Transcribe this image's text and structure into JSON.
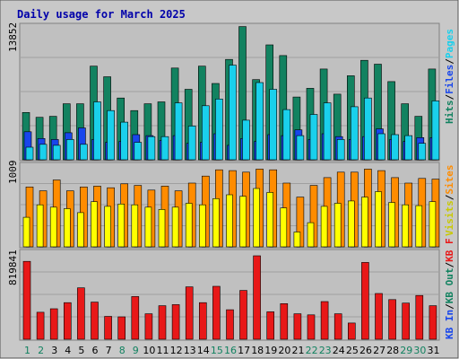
{
  "title": "Daily usage for March 2025",
  "colors": {
    "background": "#c0c0c0",
    "hits": "#128260",
    "files": "#1846ec",
    "pages": "#1ad0ec",
    "visits": "#ffff00",
    "sites": "#ff8c00",
    "kbytes": "#e81818"
  },
  "panels": [
    {
      "scale_label": "13852",
      "legend": [
        {
          "text": "Hits",
          "color": "#128260"
        },
        {
          "text": "Files",
          "color": "#1846ec"
        },
        {
          "text": "Pages",
          "color": "#1ad0ec"
        }
      ]
    },
    {
      "scale_label": "1009",
      "legend": [
        {
          "text": "Visits",
          "color": "#c9c900"
        },
        {
          "text": "Sites",
          "color": "#ff8c00"
        }
      ]
    },
    {
      "scale_label": "819841",
      "legend": [
        {
          "text": "KB In",
          "color": "#1846ec"
        },
        {
          "text": "KB Out",
          "color": "#128260"
        },
        {
          "text": "KB F",
          "color": "#e81818"
        }
      ]
    }
  ],
  "chart_data": {
    "type": "bar",
    "categories": [
      "1",
      "2",
      "3",
      "4",
      "5",
      "6",
      "7",
      "8",
      "9",
      "10",
      "11",
      "12",
      "13",
      "14",
      "15",
      "16",
      "17",
      "18",
      "19",
      "20",
      "21",
      "22",
      "23",
      "24",
      "25",
      "26",
      "27",
      "28",
      "29",
      "30",
      "31"
    ],
    "weekend_days": [
      "1",
      "2",
      "8",
      "9",
      "15",
      "16",
      "22",
      "23",
      "29",
      "30"
    ],
    "panels": [
      {
        "ymax": 13852,
        "series": [
          {
            "name": "Hits",
            "values": [
              4900,
              4400,
              4500,
              5800,
              5800,
              9700,
              8600,
              6400,
              5100,
              5800,
              6000,
              9500,
              7300,
              9700,
              7900,
              10400,
              13800,
              8300,
              11900,
              10800,
              6500,
              7400,
              9400,
              6800,
              8700,
              10300,
              9900,
              8100,
              5800,
              4500,
              9400
            ]
          },
          {
            "name": "Files",
            "values": [
              2900,
              2200,
              2100,
              2800,
              3300,
              2100,
              1800,
              1900,
              2600,
              2500,
              2000,
              2500,
              1700,
              1800,
              2700,
              1500,
              2200,
              1900,
              2600,
              2500,
              3100,
              2100,
              2700,
              2400,
              2100,
              2400,
              3200,
              2100,
              1900,
              2300,
              2300
            ]
          },
          {
            "name": "Pages",
            "values": [
              1300,
              1600,
              1500,
              2100,
              1600,
              6000,
              5100,
              3900,
              1800,
              2400,
              2400,
              5900,
              3500,
              5600,
              6300,
              9800,
              4100,
              8000,
              7300,
              5200,
              2500,
              4700,
              5900,
              2100,
              5500,
              6400,
              2700,
              2600,
              2500,
              1700,
              6100
            ]
          }
        ]
      },
      {
        "ymax": 1009,
        "series": [
          {
            "name": "Sites",
            "values": [
              770,
              720,
              860,
              720,
              770,
              780,
              760,
              810,
              790,
              730,
              780,
              720,
              820,
              910,
              990,
              980,
              960,
              1000,
              990,
              820,
              640,
              790,
              890,
              960,
              960,
              1000,
              980,
              890,
              820,
              880,
              870
            ]
          },
          {
            "name": "Visits",
            "values": [
              380,
              540,
              510,
              490,
              440,
              580,
              520,
              550,
              540,
              510,
              480,
              510,
              560,
              540,
              620,
              670,
              650,
              750,
              700,
              500,
              190,
              310,
              520,
              560,
              590,
              640,
              710,
              570,
              540,
              530,
              580
            ]
          }
        ]
      },
      {
        "ymax": 819841,
        "series": [
          {
            "name": "KB F",
            "values": [
              765000,
              265000,
              300000,
              360000,
              505000,
              365000,
              225000,
              220000,
              420000,
              250000,
              330000,
              340000,
              515000,
              360000,
              520000,
              290000,
              480000,
              820000,
              270000,
              350000,
              250000,
              240000,
              370000,
              250000,
              160000,
              755000,
              450000,
              390000,
              355000,
              430000,
              330000
            ]
          }
        ]
      }
    ]
  }
}
